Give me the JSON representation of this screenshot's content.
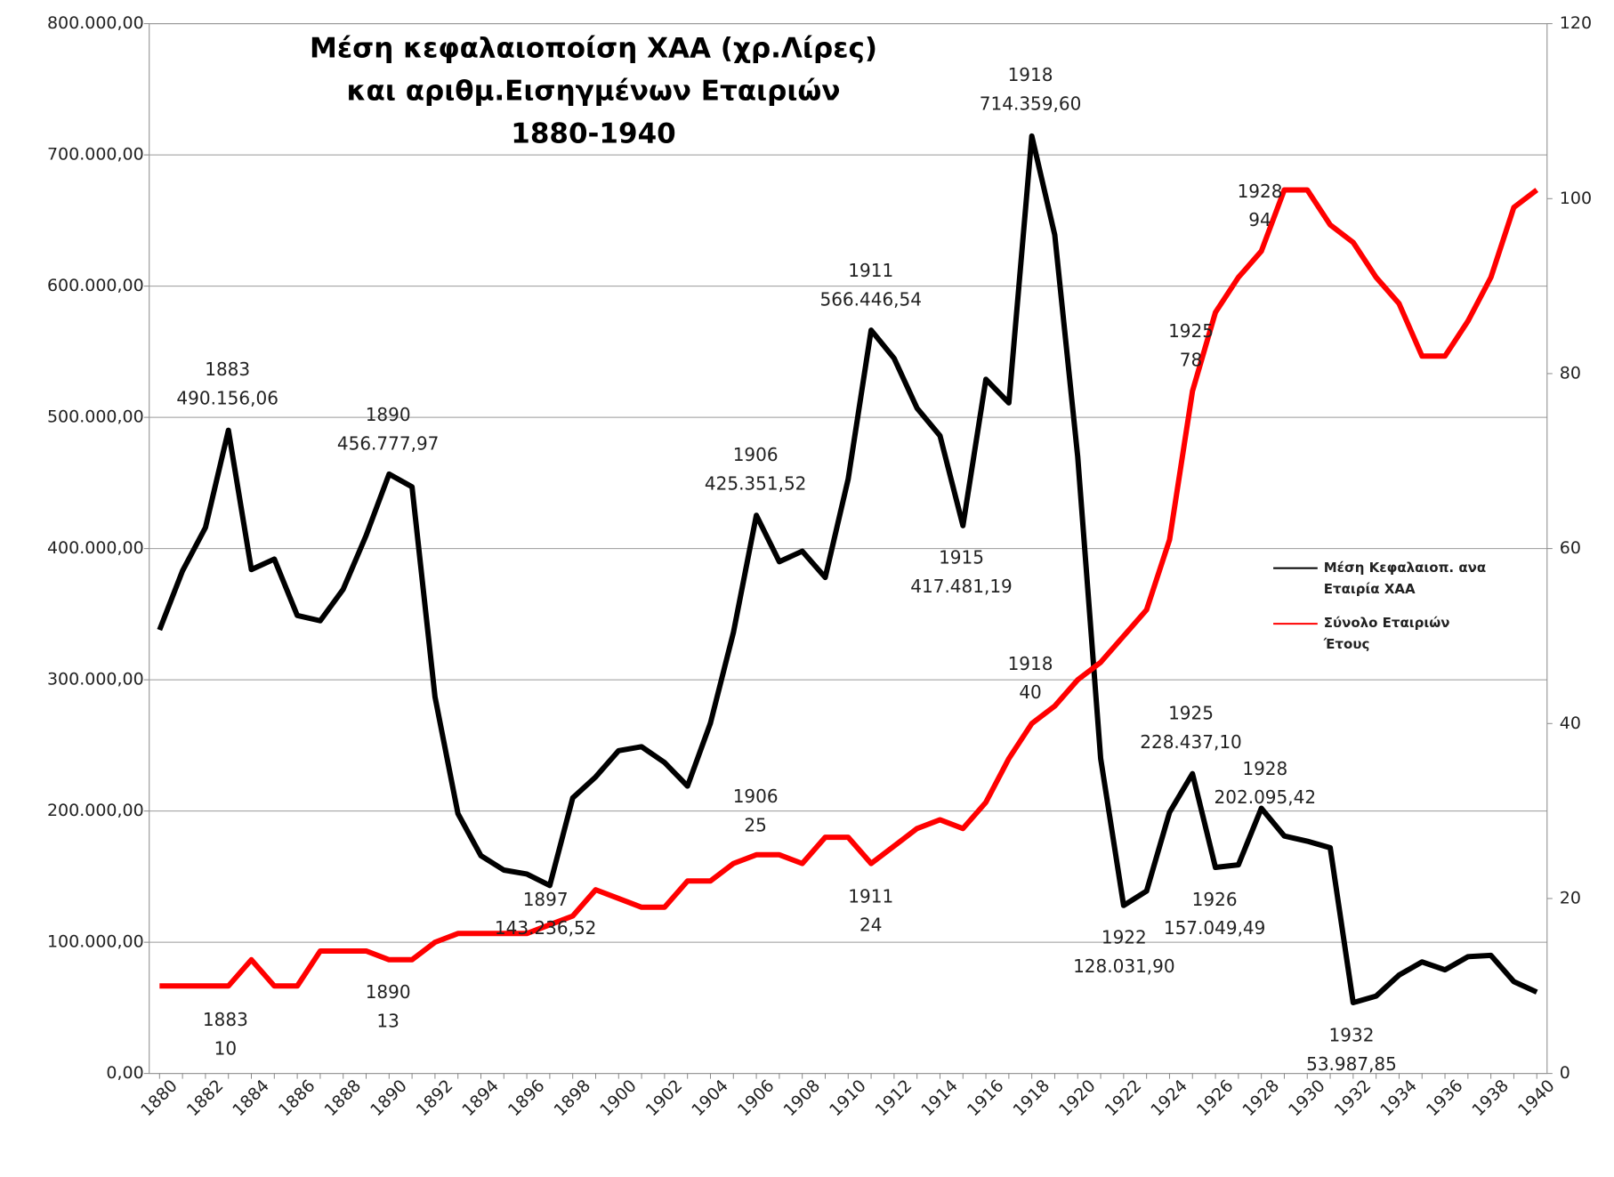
{
  "chart_data": {
    "type": "line",
    "title": [
      "Μέση κεφαλαιοπoίση  ΧΑΑ (χρ.Λίρες)",
      "και αριθμ.Εισηγμένων  Εταιριών",
      "1880-1940"
    ],
    "categories": [
      "1880",
      null,
      "1882",
      null,
      "1884",
      null,
      "1886",
      null,
      "1888",
      null,
      "1890",
      null,
      "1892",
      null,
      "1894",
      null,
      "1896",
      null,
      "1898",
      null,
      "1900",
      null,
      "1902",
      null,
      "1904",
      null,
      "1906",
      null,
      "1908",
      null,
      "1910",
      null,
      "1912",
      null,
      "1914",
      null,
      "1916",
      null,
      "1918",
      null,
      "1920",
      null,
      "1922",
      null,
      "1924",
      null,
      "1926",
      null,
      "1928",
      null,
      "1930",
      null,
      "1932",
      null,
      "1934",
      null,
      "1936",
      null,
      "1938",
      null,
      "1940"
    ],
    "series": [
      {
        "name": "Μέση Κεφαλαιοπ. ανα Εταιρία ΧΑΑ",
        "color": "#000000",
        "values": [
          338000,
          383000,
          416000,
          490156.06,
          384000,
          392000,
          349000,
          345000,
          369000,
          410000,
          456777.97,
          447000,
          287000,
          198000,
          166000,
          155000,
          152000,
          143236.52,
          210000,
          226000,
          246000,
          249000,
          237000,
          219000,
          267000,
          336000,
          425351.52,
          390000,
          398000,
          378000,
          453000,
          566446.54,
          545000,
          507000,
          486000,
          417481.19,
          529000,
          511000,
          714359.6,
          639000,
          470000,
          240000,
          128031.9,
          139000,
          199000,
          228437.1,
          157049.49,
          159000,
          202095.42,
          181000,
          177000,
          172000,
          53987.85,
          59000,
          75000,
          85000,
          79000,
          89000,
          90000,
          70000,
          62000
        ]
      },
      {
        "name": "Σύνολο Εταιριών Έτους",
        "color": "#ff0000",
        "axis": "y2",
        "values": [
          10,
          10,
          10,
          10,
          13,
          10,
          10,
          14,
          14,
          14,
          13,
          13,
          15,
          16,
          16,
          16,
          16,
          17,
          18,
          21,
          20,
          19,
          19,
          22,
          22,
          24,
          25,
          25,
          24,
          27,
          27,
          24,
          26,
          28,
          29,
          28,
          31,
          36,
          40,
          42,
          45,
          47,
          50,
          53,
          61,
          78,
          87,
          91,
          94,
          101,
          101,
          97,
          95,
          91,
          88,
          82,
          82,
          86,
          91,
          99,
          101
        ]
      }
    ],
    "annotations": [
      [
        "1883",
        "490.156,06"
      ],
      [
        "1890",
        "456.777,97"
      ],
      [
        "1897",
        "143.236,52"
      ],
      [
        "1906",
        "425.351,52"
      ],
      [
        "1911",
        "566.446,54"
      ],
      [
        "1915",
        "417.481,19"
      ],
      [
        "1918",
        "714.359,60"
      ],
      [
        "1922",
        "128.031,90"
      ],
      [
        "1925",
        "228.437,10"
      ],
      [
        "1926",
        "157.049,49"
      ],
      [
        "1928",
        "202.095,42"
      ],
      [
        "1932",
        "53.987,85"
      ],
      [
        "1883",
        "10"
      ],
      [
        "1890",
        "13"
      ],
      [
        "1906",
        "25"
      ],
      [
        "1911",
        "24"
      ],
      [
        "1918",
        "40"
      ],
      [
        "1925",
        "78"
      ],
      [
        "1928",
        "94"
      ]
    ],
    "ylim": [
      0,
      800000
    ],
    "yticks": [
      {
        "value": 0,
        "label": "0,00"
      },
      {
        "value": 100000,
        "label": "100.000,00"
      },
      {
        "value": 200000,
        "label": "200.000,00"
      },
      {
        "value": 300000,
        "label": "300.000,00"
      },
      {
        "value": 400000,
        "label": "400.000,00"
      },
      {
        "value": 500000,
        "label": "500.000,00"
      },
      {
        "value": 600000,
        "label": "600.000,00"
      },
      {
        "value": 700000,
        "label": "700.000,00"
      },
      {
        "value": 800000,
        "label": "800.000,00"
      }
    ],
    "y2lim": [
      0,
      120
    ],
    "y2ticks": [
      0,
      20,
      40,
      60,
      80,
      100,
      120
    ],
    "grid": true,
    "legend": "right"
  }
}
